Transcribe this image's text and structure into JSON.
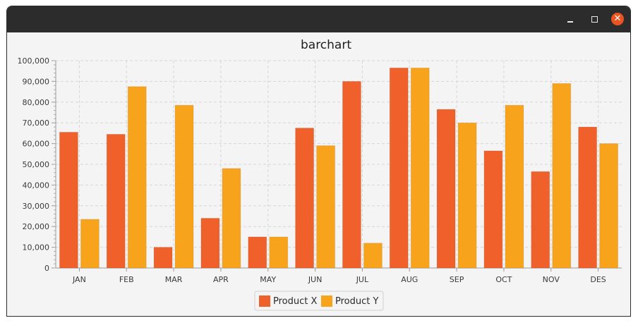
{
  "window": {
    "minimize_symbol": "",
    "maximize_symbol": "",
    "close_symbol": "✕",
    "minimize_icon": "minimize-icon",
    "maximize_icon": "maximize-icon",
    "close_icon": "close-icon",
    "close_color": "#e95420"
  },
  "chart_data": {
    "type": "bar",
    "title": "barchart",
    "xlabel": "",
    "ylabel": "",
    "categories": [
      "JAN",
      "FEB",
      "MAR",
      "APR",
      "MAY",
      "JUN",
      "JUL",
      "AUG",
      "SEP",
      "OCT",
      "NOV",
      "DES"
    ],
    "series": [
      {
        "name": "Product X",
        "color": "#f0602a",
        "values": [
          65500,
          64500,
          10000,
          24000,
          15000,
          67500,
          90000,
          96500,
          76500,
          56500,
          46500,
          68000
        ]
      },
      {
        "name": "Product Y",
        "color": "#f8a31c",
        "values": [
          23500,
          87500,
          78500,
          48000,
          15000,
          59000,
          12000,
          96500,
          70000,
          78500,
          89000,
          60000
        ]
      }
    ],
    "ylim": [
      0,
      100000
    ],
    "yticks": [
      0,
      10000,
      20000,
      30000,
      40000,
      50000,
      60000,
      70000,
      80000,
      90000,
      100000
    ],
    "ytick_labels": [
      "0",
      "10,000",
      "20,000",
      "30,000",
      "40,000",
      "50,000",
      "60,000",
      "70,000",
      "80,000",
      "90,000",
      "100,000"
    ],
    "grid": true,
    "legend_position": "bottom"
  }
}
